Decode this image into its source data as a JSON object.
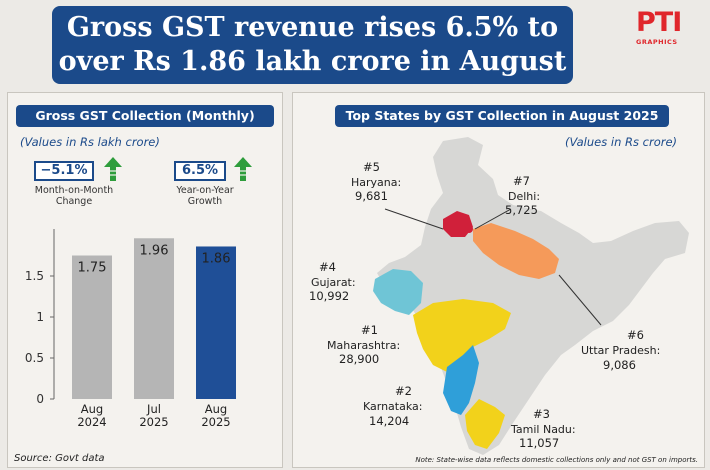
{
  "headline": {
    "line1": "Gross GST revenue rises 6.5% to",
    "line2": "over Rs 1.86 lakh crore in August"
  },
  "logo": {
    "main": "PTI",
    "sub": "GRAPHICS"
  },
  "left_panel": {
    "title": "Gross GST Collection (Monthly)",
    "units": "(Values in Rs lakh crore)",
    "mom": {
      "value": "−5.1%",
      "label_line1": "Month-on-Month",
      "label_line2": "Change",
      "direction": "up"
    },
    "yoy": {
      "value": "6.5%",
      "label_line1": "Year-on-Year",
      "label_line2": "Growth",
      "direction": "up"
    },
    "source": "Source: Govt data"
  },
  "right_panel": {
    "title": "Top States by GST Collection in August 2025",
    "units": "(Values in Rs crore)",
    "note": "Note: State-wise data reflects domestic collections only and not GST on imports."
  },
  "chart_data": [
    {
      "type": "bar",
      "categories": [
        [
          "Aug",
          "2024"
        ],
        [
          "Jul",
          "2025"
        ],
        [
          "Aug",
          "2025"
        ]
      ],
      "values": [
        1.75,
        1.96,
        1.86
      ],
      "data_labels": [
        "1.75",
        "1.96",
        "1.86"
      ],
      "ylim": [
        0,
        2
      ],
      "yticks": [
        0,
        0.5,
        1,
        1.5
      ],
      "ytick_labels": [
        "0",
        "0.5",
        "1",
        "1.5"
      ],
      "grid": false,
      "colors": [
        "#b5b5b5",
        "#b5b5b5",
        "#1f4f97"
      ]
    },
    {
      "type": "table",
      "states": [
        {
          "rank": "#1",
          "name": "Maharashtra:",
          "value": 28900,
          "label": "28,900",
          "color": "#f2d21b"
        },
        {
          "rank": "#2",
          "name": "Karnataka:",
          "value": 14204,
          "label": "14,204",
          "color": "#2f9fd9"
        },
        {
          "rank": "#3",
          "name": "Tamil Nadu:",
          "value": 11057,
          "label": "11,057",
          "color": "#f2d21b"
        },
        {
          "rank": "#4",
          "name": "Gujarat:",
          "value": 10992,
          "label": "10,992",
          "color": "#6fc5d6"
        },
        {
          "rank": "#5",
          "name": "Haryana:",
          "value": 9681,
          "label": "9,681",
          "color": "#d0203a"
        },
        {
          "rank": "#6",
          "name": "Uttar Pradesh:",
          "value": 9086,
          "label": "9,086",
          "color": "#f59a5a"
        },
        {
          "rank": "#7",
          "name": "Delhi:",
          "value": 5725,
          "label": "5,725",
          "color": "#d0203a"
        }
      ]
    }
  ]
}
